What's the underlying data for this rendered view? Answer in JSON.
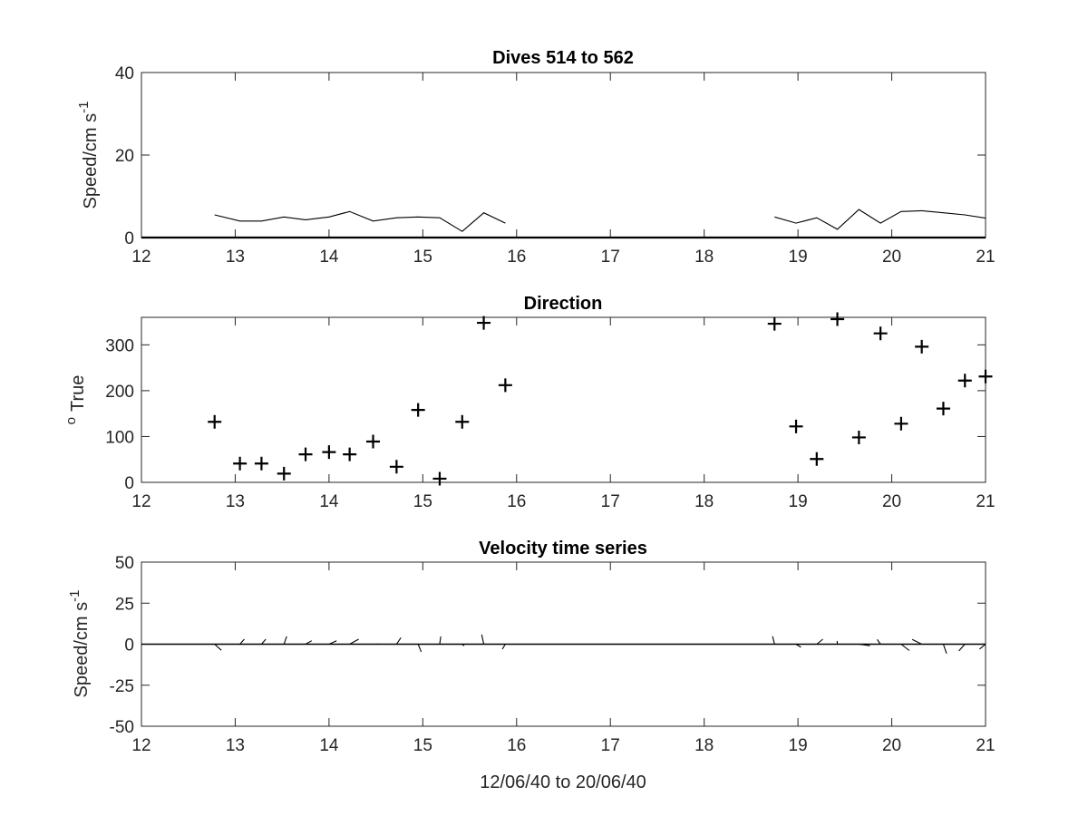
{
  "chart_data": [
    {
      "type": "line",
      "title": "Dives 514 to 562",
      "xlabel": "",
      "ylabel": "Speed/cm s",
      "ylabel_superscript": "-1",
      "xlim": [
        12,
        21
      ],
      "ylim": [
        0,
        40
      ],
      "xticks": [
        12,
        13,
        14,
        15,
        16,
        17,
        18,
        19,
        20,
        21
      ],
      "yticks": [
        0,
        20,
        40
      ],
      "grid": false,
      "series": [
        {
          "x": [
            12.78,
            13.05,
            13.28,
            13.52,
            13.75,
            14.0,
            14.22,
            14.47,
            14.72,
            14.95,
            15.18,
            15.42,
            15.65,
            15.88
          ],
          "y": [
            5.5,
            4.0,
            4.0,
            5.0,
            4.3,
            5.0,
            6.3,
            4.0,
            4.8,
            5.0,
            4.8,
            1.5,
            6.0,
            3.5
          ]
        },
        {
          "x": [
            18.75,
            18.98,
            19.2,
            19.42,
            19.65,
            19.88,
            20.1,
            20.32,
            20.55,
            20.78,
            21.0
          ],
          "y": [
            5.0,
            3.5,
            4.8,
            2.0,
            6.8,
            3.5,
            6.3,
            6.5,
            6.0,
            5.5,
            4.7
          ]
        }
      ],
      "baseline": 0
    },
    {
      "type": "scatter",
      "title": "Direction",
      "xlabel": "",
      "ylabel": "True",
      "ylabel_superscript": "o",
      "xlim": [
        12,
        21
      ],
      "ylim": [
        0,
        360
      ],
      "xticks": [
        12,
        13,
        14,
        15,
        16,
        17,
        18,
        19,
        20,
        21
      ],
      "yticks": [
        0,
        100,
        200,
        300
      ],
      "grid": false,
      "marker": "+",
      "points": {
        "x": [
          12.78,
          13.05,
          13.28,
          13.52,
          13.75,
          14.0,
          14.22,
          14.47,
          14.72,
          14.95,
          15.18,
          15.42,
          15.65,
          15.88,
          18.75,
          18.98,
          19.2,
          19.42,
          19.65,
          19.88,
          20.1,
          20.32,
          20.55,
          20.78,
          21.0
        ],
        "y": [
          132,
          41,
          41,
          19,
          61,
          66,
          61,
          89,
          34,
          158,
          8,
          132,
          348,
          212,
          346,
          122,
          51,
          356,
          98,
          325,
          128,
          296,
          161,
          222,
          231
        ]
      }
    },
    {
      "type": "line",
      "subtype": "stick-plot",
      "title": "Velocity time series",
      "xlabel": "12/06/40 to 20/06/40",
      "ylabel": "Speed/cm s",
      "ylabel_superscript": "-1",
      "xlim": [
        12,
        21
      ],
      "ylim": [
        -50,
        50
      ],
      "xticks": [
        12,
        13,
        14,
        15,
        16,
        17,
        18,
        19,
        20,
        21
      ],
      "yticks": [
        -50,
        -25,
        0,
        25,
        50
      ],
      "grid": false,
      "baseline": 0,
      "vectors": {
        "x": [
          12.78,
          13.05,
          13.28,
          13.52,
          13.75,
          14.0,
          14.22,
          14.47,
          14.72,
          14.95,
          15.18,
          15.42,
          15.65,
          15.88,
          18.75,
          18.98,
          19.2,
          19.42,
          19.65,
          19.88,
          20.1,
          20.32,
          20.55,
          20.78,
          21.0
        ],
        "speed": [
          5.5,
          4.0,
          4.0,
          5.0,
          4.3,
          5.0,
          6.3,
          4.0,
          4.8,
          5.0,
          4.8,
          1.5,
          6.0,
          3.5,
          5.0,
          3.5,
          4.8,
          2.0,
          6.8,
          3.5,
          6.3,
          6.5,
          6.0,
          5.5,
          4.7
        ],
        "direction": [
          132,
          41,
          41,
          19,
          61,
          66,
          61,
          89,
          34,
          158,
          8,
          132,
          348,
          212,
          346,
          122,
          51,
          356,
          98,
          325,
          128,
          296,
          161,
          222,
          231
        ]
      }
    }
  ]
}
